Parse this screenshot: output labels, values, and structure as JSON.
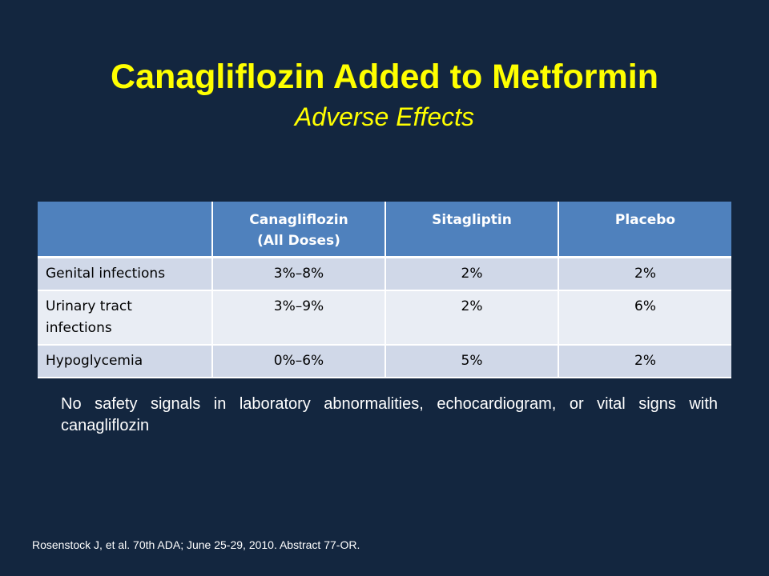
{
  "slide": {
    "title": "Canagliflozin Added to Metformin",
    "subtitle": "Adverse Effects"
  },
  "table": {
    "headers": [
      "",
      "Canagliflozin",
      "(All Doses)",
      "Sitagliptin",
      "Placebo"
    ],
    "columns": {
      "col0": "",
      "col1_line1": "Canagliflozin",
      "col1_line2": "(All Doses)",
      "col2": "Sitagliptin",
      "col3": "Placebo"
    },
    "rows": [
      {
        "label": "Genital infections",
        "canagliflozin": "3%–8%",
        "sitagliptin": "2%",
        "placebo": "2%"
      },
      {
        "label_line1": "Urinary tract",
        "label_line2": "infections",
        "canagliflozin": "3%–9%",
        "sitagliptin": "2%",
        "placebo": "6%"
      },
      {
        "label": "Hypoglycemia",
        "canagliflozin": "0%–6%",
        "sitagliptin": "5%",
        "placebo": "2%"
      }
    ]
  },
  "note": "No safety signals in laboratory abnormalities, echocardiogram, or vital signs with canagliflozin",
  "citation": "Rosenstock J, et al. 70th ADA; June 25-29, 2010. Abstract 77-OR.",
  "colors": {
    "background": "#13263f",
    "title": "#ffff00",
    "header_fill": "#4f81bd",
    "row_odd": "#d0d8e8",
    "row_even": "#e9edf4"
  }
}
